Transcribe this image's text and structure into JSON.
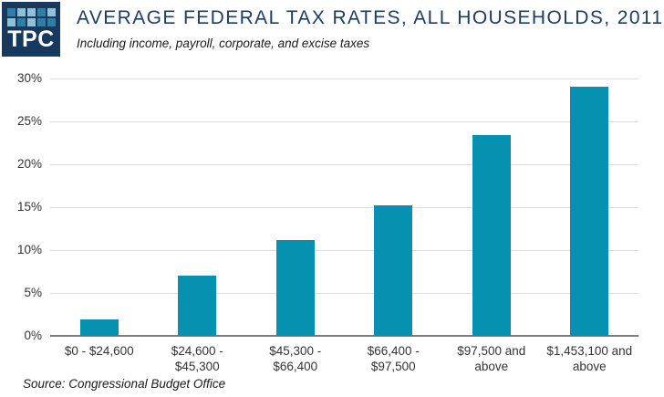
{
  "header": {
    "logo_text": "TPC",
    "title": "AVERAGE FEDERAL TAX RATES, ALL HOUSEHOLDS, 2011",
    "subtitle": "Including income, payroll, corporate, and excise taxes"
  },
  "logo": {
    "background": "#17395E",
    "square_colors": {
      "m": "#2E7FA6",
      "l": "#8FC0D8"
    },
    "squares": [
      [
        "m",
        "l",
        "l",
        "m",
        "l"
      ],
      [
        "l",
        "m",
        "l",
        "m",
        "m"
      ]
    ]
  },
  "chart_data": {
    "type": "bar",
    "title": "AVERAGE FEDERAL TAX RATES, ALL HOUSEHOLDS, 2011",
    "subtitle": "Including income, payroll, corporate, and excise taxes",
    "categories": [
      [
        "$0 - $24,600"
      ],
      [
        "$24,600 -",
        "$45,300"
      ],
      [
        "$45,300 -",
        "$66,400"
      ],
      [
        "$66,400 -",
        "$97,500"
      ],
      [
        "$97,500 and",
        "above"
      ],
      [
        "$1,453,100 and",
        "above"
      ]
    ],
    "values": [
      1.9,
      7.0,
      11.2,
      15.2,
      23.4,
      29.0
    ],
    "xlabel": "",
    "ylabel": "",
    "ylim": [
      0,
      30
    ],
    "ytick_step": 5,
    "ytick_labels": [
      "0%",
      "5%",
      "10%",
      "15%",
      "20%",
      "25%",
      "30%"
    ],
    "grid": true,
    "legend_position": "none",
    "bar_color": "#0791B1",
    "gridline_color": "#DCDCDC",
    "baseline_color": "#7F7F7F"
  },
  "footer": {
    "source": "Source: Congressional Budget Office"
  }
}
